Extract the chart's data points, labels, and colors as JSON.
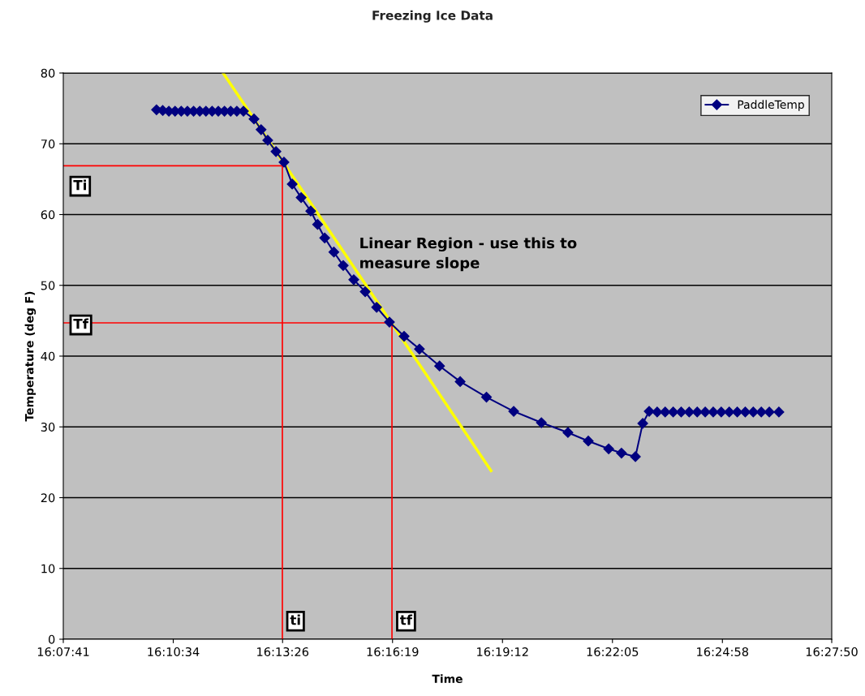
{
  "chart_data": {
    "type": "line",
    "title": "Freezing Ice Data",
    "xlabel": "Time",
    "ylabel": "Temperature (deg F)",
    "xlim": [
      16.128056,
      16.463889
    ],
    "xticks": [
      {
        "value": 16.128056,
        "label": "16:07:41"
      },
      {
        "value": 16.176111,
        "label": "16:10:34"
      },
      {
        "value": 16.223889,
        "label": "16:13:26"
      },
      {
        "value": 16.271944,
        "label": "16:16:19"
      },
      {
        "value": 16.32,
        "label": "16:19:12"
      },
      {
        "value": 16.368056,
        "label": "16:22:05"
      },
      {
        "value": 16.416111,
        "label": "16:24:58"
      },
      {
        "value": 16.463889,
        "label": "16:27:50"
      }
    ],
    "ylim": [
      0,
      80
    ],
    "yticks": [
      0,
      10,
      20,
      30,
      40,
      50,
      60,
      70,
      80
    ],
    "grid": "y",
    "legend": "top right",
    "series": [
      {
        "name": "PaddleTemp",
        "color": "#000080",
        "marker": "diamond",
        "x": [
          16.1688,
          16.1715,
          16.1742,
          16.1769,
          16.1796,
          16.1823,
          16.185,
          16.1877,
          16.1904,
          16.1931,
          16.1958,
          16.1985,
          16.2012,
          16.2039,
          16.2068,
          16.2114,
          16.2145,
          16.2174,
          16.221,
          16.2245,
          16.2281,
          16.232,
          16.2362,
          16.2392,
          16.2423,
          16.2463,
          16.2504,
          16.255,
          16.26,
          16.265,
          16.2706,
          16.277,
          16.2837,
          16.2925,
          16.3015,
          16.313,
          16.3249,
          16.337,
          16.3486,
          16.3575,
          16.3664,
          16.372,
          16.3781,
          16.3813,
          16.3841,
          16.3876,
          16.3911,
          16.3946,
          16.3981,
          16.4016,
          16.4051,
          16.4086,
          16.4121,
          16.4156,
          16.4191,
          16.4226,
          16.4261,
          16.4296,
          16.4331,
          16.4366,
          16.4408
        ],
        "values": [
          74.8,
          74.7,
          74.6,
          74.6,
          74.6,
          74.6,
          74.6,
          74.6,
          74.6,
          74.6,
          74.6,
          74.6,
          74.6,
          74.6,
          74.6,
          73.5,
          72.0,
          70.5,
          68.9,
          67.4,
          64.3,
          62.4,
          60.5,
          58.6,
          56.7,
          54.7,
          52.8,
          50.8,
          49.1,
          46.9,
          44.8,
          42.8,
          41.0,
          38.6,
          36.4,
          34.2,
          32.2,
          30.6,
          29.2,
          28.0,
          26.9,
          26.3,
          25.8,
          30.5,
          32.2,
          32.1,
          32.1,
          32.1,
          32.1,
          32.1,
          32.1,
          32.1,
          32.1,
          32.1,
          32.1,
          32.1,
          32.1,
          32.1,
          32.1,
          32.1,
          32.1
        ]
      },
      {
        "color": "#ffff00",
        "marker": "none",
        "x": [
          16.1979,
          16.315
        ],
        "values": [
          80,
          23.8
        ]
      },
      {
        "color": "#ff0000",
        "marker": "none",
        "x": [
          16.128056,
          16.2238,
          16.2238
        ],
        "values": [
          66.9,
          66.9,
          0
        ]
      },
      {
        "color": "#ff0000",
        "marker": "none",
        "x": [
          16.128056,
          16.2717,
          16.2717
        ],
        "values": [
          44.7,
          44.7,
          0
        ]
      }
    ],
    "annotations": [
      "Ti",
      "Tf",
      "ti",
      "tf",
      "Linear Region - use this to\nmeasure slope"
    ]
  }
}
